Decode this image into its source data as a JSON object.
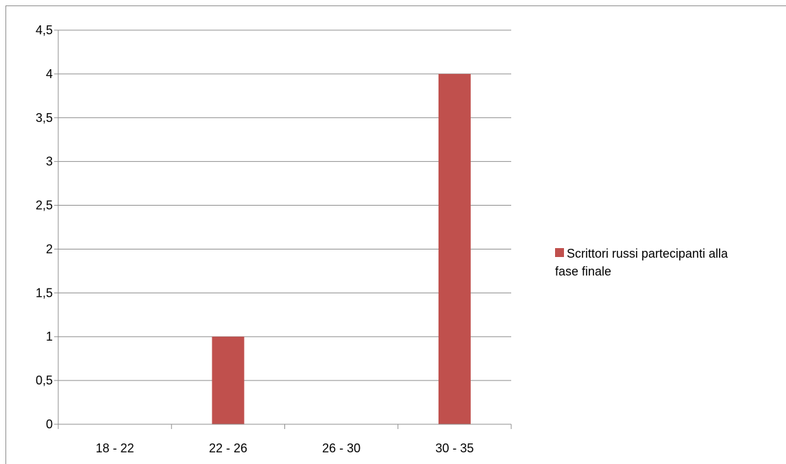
{
  "chart_data": {
    "type": "bar",
    "categories": [
      "18 - 22",
      "22 - 26",
      "26 - 30",
      "30 - 35"
    ],
    "series": [
      {
        "name": "Scrittori russi partecipanti alla fase finale",
        "values": [
          0,
          1,
          0,
          4
        ],
        "color": "#c0504d"
      }
    ],
    "ylim": [
      0,
      4.5
    ],
    "yticks": [
      "0",
      "0,5",
      "1",
      "1,5",
      "2",
      "2,5",
      "3",
      "3,5",
      "4",
      "4,5"
    ],
    "grid": true,
    "legend_position": "right",
    "legend_lines": [
      "Scrittori russi partecipanti alla",
      "fase finale"
    ]
  }
}
